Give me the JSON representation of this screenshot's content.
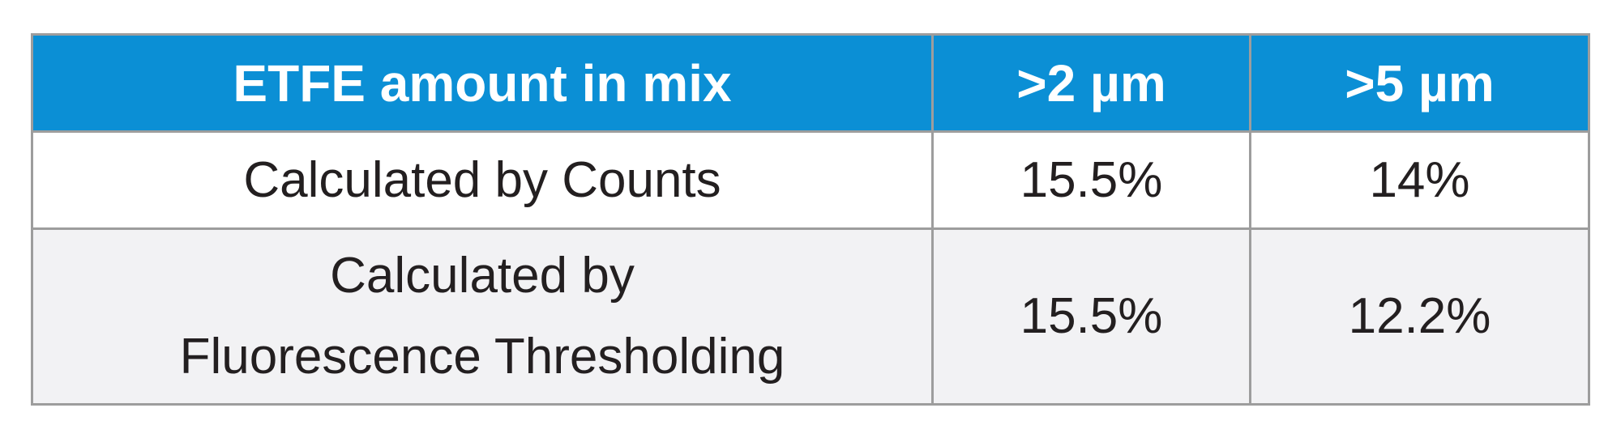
{
  "table": {
    "header": [
      "ETFE amount in mix",
      ">2 µm",
      ">5 µm"
    ],
    "rows": [
      [
        [
          "Calculated by Counts"
        ],
        "15.5%",
        "14%"
      ],
      [
        [
          "Calculated by",
          "Fluorescence Thresholding"
        ],
        "15.5%",
        "12.2%"
      ]
    ]
  }
}
